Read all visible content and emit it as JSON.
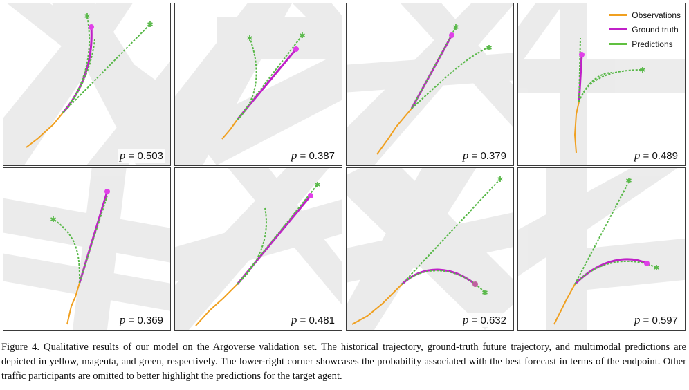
{
  "figure": {
    "panels": [
      {
        "p_label": "p",
        "p_value": "= 0.503"
      },
      {
        "p_label": "p",
        "p_value": "= 0.387"
      },
      {
        "p_label": "p",
        "p_value": "= 0.379"
      },
      {
        "p_label": "p",
        "p_value": "= 0.489"
      },
      {
        "p_label": "p",
        "p_value": "= 0.369"
      },
      {
        "p_label": "p",
        "p_value": "= 0.481"
      },
      {
        "p_label": "p",
        "p_value": "= 0.632"
      },
      {
        "p_label": "p",
        "p_value": "= 0.597"
      }
    ],
    "legend": [
      {
        "label": "Observations",
        "color": "#f0a020"
      },
      {
        "label": "Ground truth",
        "color": "#c020c8"
      },
      {
        "label": "Predictions",
        "color": "#60c040"
      }
    ],
    "colors": {
      "observation": "#f0a020",
      "ground_truth": "#c020c8",
      "prediction": "#58b848",
      "prediction_marker": "#2a8a6a",
      "road": "#d8d8d8"
    },
    "caption": "Figure 4. Qualitative results of our model on the Argoverse validation set. The historical trajectory, ground-truth future trajectory, and multimodal predictions are depicted in yellow, magenta, and green, respectively. The lower-right corner showcases the probability associated with the best forecast in terms of the endpoint. Other traffic participants are omitted to better highlight the predictions for the target agent."
  }
}
